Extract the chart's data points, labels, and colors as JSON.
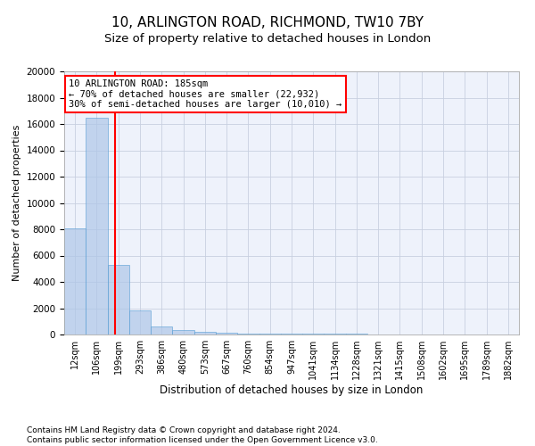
{
  "title": "10, ARLINGTON ROAD, RICHMOND, TW10 7BY",
  "subtitle": "Size of property relative to detached houses in London",
  "xlabel": "Distribution of detached houses by size in London",
  "ylabel": "Number of detached properties",
  "bin_labels": [
    "12sqm",
    "106sqm",
    "199sqm",
    "293sqm",
    "386sqm",
    "480sqm",
    "573sqm",
    "667sqm",
    "760sqm",
    "854sqm",
    "947sqm",
    "1041sqm",
    "1134sqm",
    "1228sqm",
    "1321sqm",
    "1415sqm",
    "1508sqm",
    "1602sqm",
    "1695sqm",
    "1789sqm",
    "1882sqm"
  ],
  "bar_heights": [
    8100,
    16500,
    5300,
    1800,
    600,
    350,
    200,
    150,
    100,
    80,
    60,
    50,
    40,
    35,
    30,
    20,
    15,
    12,
    10,
    8,
    5
  ],
  "bar_color": "#aec6e8",
  "bar_edge_color": "#5a9fd4",
  "bar_alpha": 0.7,
  "vline_color": "red",
  "vline_lw": 1.5,
  "vline_pos": 1.85,
  "annotation_text": "10 ARLINGTON ROAD: 185sqm\n← 70% of detached houses are smaller (22,932)\n30% of semi-detached houses are larger (10,010) →",
  "ylim": [
    0,
    20000
  ],
  "yticks": [
    0,
    2000,
    4000,
    6000,
    8000,
    10000,
    12000,
    14000,
    16000,
    18000,
    20000
  ],
  "grid_color": "#c8d0e0",
  "bg_color": "#eef2fb",
  "footer_line1": "Contains HM Land Registry data © Crown copyright and database right 2024.",
  "footer_line2": "Contains public sector information licensed under the Open Government Licence v3.0.",
  "title_fontsize": 11,
  "subtitle_fontsize": 9.5,
  "ylabel_fontsize": 8,
  "xlabel_fontsize": 8.5,
  "tick_fontsize": 7,
  "footer_fontsize": 6.5
}
